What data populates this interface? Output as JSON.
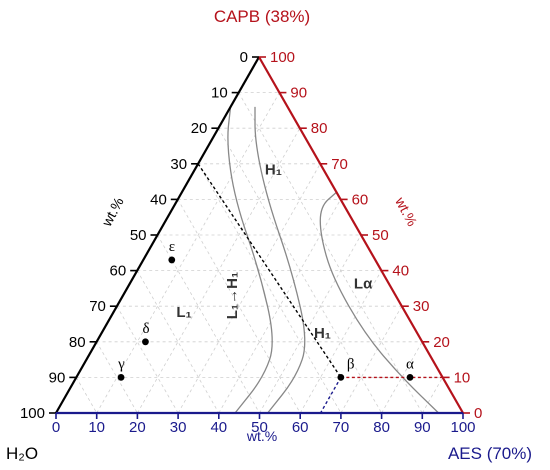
{
  "chart_data": {
    "type": "ternary",
    "corners": {
      "top": "CAPB (38%)",
      "right": "AES (70%)",
      "left": "H₂O"
    },
    "axis_labels": {
      "left": "wt.%",
      "right": "wt.%",
      "bottom": "wt.%"
    },
    "ticks": {
      "left": [
        "0",
        "10",
        "20",
        "30",
        "40",
        "50",
        "60",
        "70",
        "80",
        "90",
        "100"
      ],
      "right": [
        "100",
        "90",
        "80",
        "70",
        "60",
        "50",
        "40",
        "30",
        "20",
        "10",
        "0"
      ],
      "bottom": [
        "0",
        "10",
        "20",
        "30",
        "40",
        "50",
        "60",
        "70",
        "80",
        "90",
        "100"
      ]
    },
    "colors": {
      "left_axis": "#000000",
      "right_axis": "#b5121b",
      "bottom_axis": "#1a1a8c",
      "boundary": "#888888",
      "grid": "#cfcfcf"
    },
    "grid": true,
    "points": [
      {
        "label": "α",
        "water": 8,
        "capb": 10,
        "aes": 82
      },
      {
        "label": "β",
        "water": 25,
        "capb": 10,
        "aes": 65
      },
      {
        "label": "γ",
        "water": 79,
        "capb": 10,
        "aes": 11
      },
      {
        "label": "δ",
        "water": 68,
        "capb": 20,
        "aes": 12
      },
      {
        "label": "ε",
        "water": 50,
        "capb": 43,
        "aes": 7
      }
    ],
    "dilution_line": {
      "from": {
        "water": 30,
        "capb": 70,
        "aes": 0
      },
      "to": {
        "water": 25,
        "capb": 10,
        "aes": 65
      }
    },
    "reference_lines": [
      {
        "name": "capb-ref",
        "from": {
          "water": 25,
          "capb": 10,
          "aes": 65
        },
        "to": {
          "water": 0,
          "capb": 10,
          "aes": 90
        }
      },
      {
        "name": "aes-ref",
        "from": {
          "water": 25,
          "capb": 10,
          "aes": 65
        },
        "to": {
          "water": 35,
          "capb": 0,
          "aes": 65
        }
      }
    ],
    "boundaries": [
      {
        "name": "L1-left-boundary",
        "points": [
          [
            14,
            86,
            0
          ],
          [
            20,
            76,
            4
          ],
          [
            26,
            60,
            14
          ],
          [
            30,
            40,
            30
          ],
          [
            36,
            20,
            44
          ],
          [
            44,
            10,
            46
          ],
          [
            56,
            0,
            44
          ]
        ]
      },
      {
        "name": "L1-right-boundary",
        "points": [
          [
            8,
            86,
            6
          ],
          [
            13,
            76,
            11
          ],
          [
            18,
            60,
            22
          ],
          [
            22,
            40,
            38
          ],
          [
            28,
            20,
            52
          ],
          [
            36,
            10,
            54
          ],
          [
            48,
            0,
            52
          ]
        ]
      },
      {
        "name": "H1-La-boundary",
        "points": [
          [
            0,
            62,
            38
          ],
          [
            6,
            58,
            36
          ],
          [
            10,
            50,
            40
          ],
          [
            13,
            38,
            49
          ],
          [
            13,
            22,
            65
          ],
          [
            10,
            10,
            80
          ],
          [
            6,
            0,
            94
          ]
        ]
      }
    ],
    "regions": [
      {
        "label": "L₁",
        "water": 55,
        "capb": 27,
        "aes": 18
      },
      {
        "label": "L₁→H₁",
        "water": 39,
        "capb": 33,
        "aes": 28
      },
      {
        "label": "H₁",
        "water": 13,
        "capb": 67,
        "aes": 20
      },
      {
        "label": "Lα",
        "water": 7,
        "capb": 35,
        "aes": 58
      },
      {
        "label": "H₁",
        "water": 24,
        "capb": 21,
        "aes": 55
      }
    ]
  }
}
